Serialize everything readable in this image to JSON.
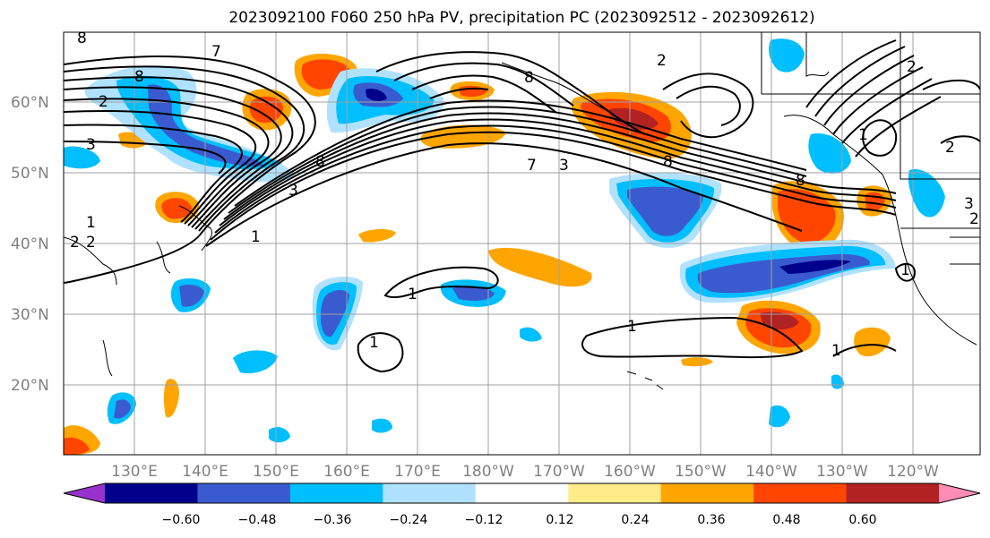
{
  "title": "2023092100 F060 250 hPa PV, precipitation PC (2023092512 - 2023092612)",
  "map": {
    "lat_labels": [
      "60°N",
      "50°N",
      "40°N",
      "30°N",
      "20°N"
    ],
    "lon_labels": [
      "130°E",
      "140°E",
      "150°E",
      "160°E",
      "170°E",
      "180°W",
      "170°W",
      "160°W",
      "150°W",
      "140°W",
      "130°W",
      "120°W"
    ]
  },
  "colorbar": {
    "colors": [
      "#9932cc",
      "#00008b",
      "#3a5bcf",
      "#00bfff",
      "#b0e2ff",
      "#ffffff",
      "#ffeb8a",
      "#ffa500",
      "#ff4500",
      "#b22222",
      "#ff8cb4"
    ],
    "tick_labels": [
      "−0.60",
      "−0.48",
      "−0.36",
      "−0.24",
      "−0.12",
      "0.12",
      "0.24",
      "0.36",
      "0.48",
      "0.60"
    ]
  },
  "contour_labels": [
    "8",
    "7",
    "8",
    "2",
    "3",
    "1",
    "2",
    "2",
    "1",
    "3",
    "8",
    "7",
    "8",
    "3",
    "2",
    "2",
    "1",
    "1",
    "1",
    "1",
    "1",
    "8",
    "8",
    "2",
    "1",
    "3",
    "2"
  ]
}
